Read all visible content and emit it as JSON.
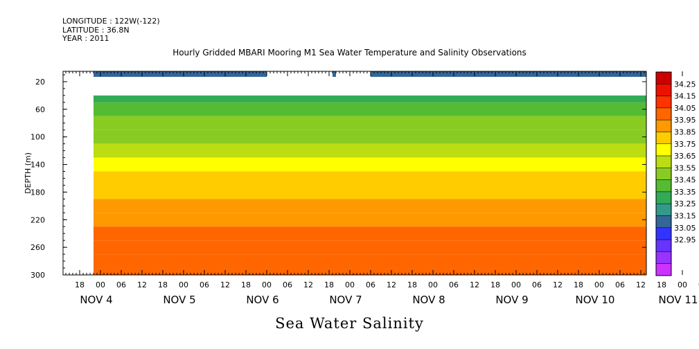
{
  "header": {
    "longitude": "LONGITUDE : 122W(-122)",
    "latitude": "LATITUDE : 36.8N",
    "year": "YEAR : 2011"
  },
  "chart_data": {
    "type": "heatmap",
    "title": "Hourly Gridded MBARI Mooring M1 Sea Water Temperature and Salinity Observations",
    "main_title": "Sea Water Salinity",
    "ylabel": "DEPTH (m)",
    "ylim": [
      300,
      5
    ],
    "yticks": [
      20,
      60,
      100,
      140,
      180,
      220,
      260,
      300
    ],
    "x_hours": [
      "18",
      "00",
      "06",
      "12",
      "18",
      "00",
      "06",
      "12",
      "18",
      "00",
      "06",
      "12",
      "18",
      "00",
      "06",
      "12",
      "18",
      "00",
      "06",
      "12",
      "18",
      "00",
      "06",
      "12",
      "18",
      "00",
      "06",
      "12",
      "18",
      "00",
      "06",
      "12"
    ],
    "x_dates": [
      "NOV  4",
      "NOV  5",
      "NOV  6",
      "NOV  7",
      "NOV  8",
      "NOV  9",
      "NOV 10",
      "NOV 11"
    ],
    "colorbar": {
      "levels": [
        32.95,
        33.05,
        33.15,
        33.25,
        33.35,
        33.45,
        33.55,
        33.65,
        33.75,
        33.85,
        33.95,
        34.05,
        34.15,
        34.25
      ],
      "labels": [
        "34.25",
        "34.15",
        "34.05",
        "33.95",
        "33.85",
        "33.75",
        "33.65",
        "33.55",
        "33.45",
        "33.35",
        "33.25",
        "33.15",
        "33.05",
        "32.95"
      ],
      "colors": [
        "#cc33ff",
        "#9933ff",
        "#6633ff",
        "#3333ff",
        "#336699",
        "#339988",
        "#33aa55",
        "#55bb33",
        "#88cc22",
        "#bbdd11",
        "#ffff00",
        "#ffcc00",
        "#ff9900",
        "#ff6600",
        "#ff3300",
        "#ee1100",
        "#cc0000"
      ]
    },
    "surface_bands": [
      {
        "start": "NOV 3 12:00",
        "end": "NOV 6 00:00",
        "salinity": 33.3
      },
      {
        "start": "NOV 6 19:00",
        "end": "NOV 6 20:00",
        "salinity": 33.3
      },
      {
        "start": "NOV 7 06:00",
        "end": "NOV 11 12:00",
        "salinity": 33.3
      }
    ],
    "profile": [
      {
        "depth": 40,
        "salinity": 33.5
      },
      {
        "depth": 60,
        "salinity": 33.6
      },
      {
        "depth": 80,
        "salinity": 33.7
      },
      {
        "depth": 100,
        "salinity": 33.75
      },
      {
        "depth": 120,
        "salinity": 33.85
      },
      {
        "depth": 140,
        "salinity": 33.95
      },
      {
        "depth": 160,
        "salinity": 34.0
      },
      {
        "depth": 180,
        "salinity": 34.05
      },
      {
        "depth": 200,
        "salinity": 34.1
      },
      {
        "depth": 220,
        "salinity": 34.15
      },
      {
        "depth": 240,
        "salinity": 34.2
      },
      {
        "depth": 260,
        "salinity": 34.25
      },
      {
        "depth": 280,
        "salinity": 34.22
      },
      {
        "depth": 300,
        "salinity": 34.18
      }
    ]
  }
}
